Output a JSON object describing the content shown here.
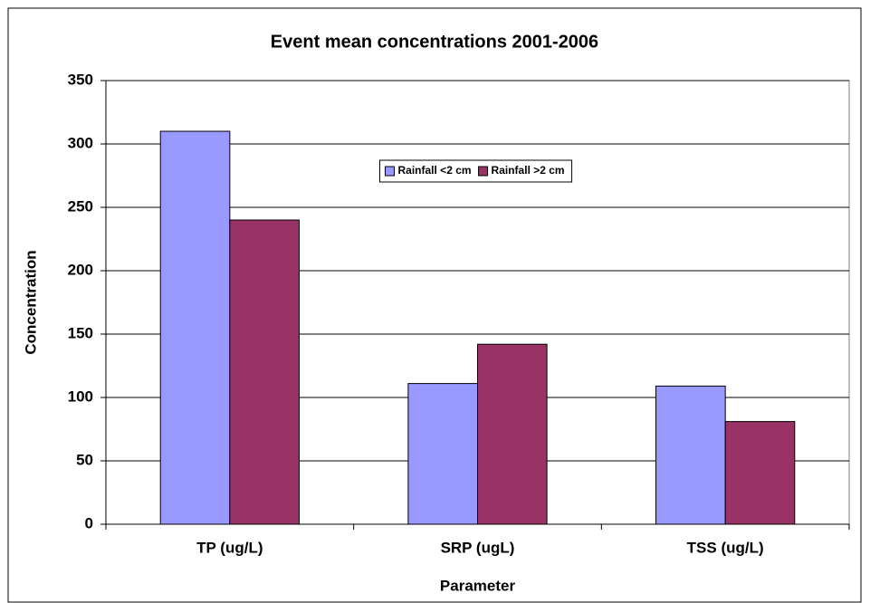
{
  "chart_data": {
    "type": "bar",
    "title": "Event mean concentrations 2001-2006",
    "x_label": "Parameter",
    "y_label": "Concentration",
    "categories": [
      "TP (ug/L)",
      "SRP (ugL)",
      "TSS (ug/L)"
    ],
    "series": [
      {
        "name": "Rainfall <2 cm",
        "color": "#9999ff",
        "values": [
          310,
          111,
          109
        ]
      },
      {
        "name": "Rainfall >2 cm",
        "color": "#993366",
        "values": [
          240,
          142,
          81
        ]
      }
    ],
    "ylim": [
      0,
      350
    ],
    "yticks": [
      0,
      50,
      100,
      150,
      200,
      250,
      300,
      350
    ],
    "grid": true,
    "legend": "upper-center"
  }
}
